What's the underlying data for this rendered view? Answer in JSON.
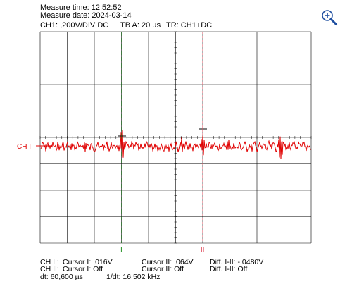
{
  "header": {
    "measure_time": "Measure time: 12:52:52",
    "measure_date": "Measure date: 2024-03-14",
    "channel": "CH1: ,200V/DIV DC",
    "timebase": "TB A: 20 µs",
    "trigger": "TR: CH1+DC"
  },
  "toolbar": {
    "zoom_icon": "zoom-in-icon"
  },
  "plot": {
    "channel_label": "CH I",
    "cursor1_label": "I",
    "cursor2_label": "II",
    "colors": {
      "trace": "#e00000",
      "cursor1": "#1a8a1a",
      "cursor2": "#e05060",
      "grid": "#000000",
      "channel_marker": "#e00000"
    }
  },
  "footer": {
    "ch1_label": "CH I :",
    "ch1_cursor1": "Cursor I: ,016V",
    "ch1_cursor2": "Cursor II: ,064V",
    "ch1_diff": "Diff. I-II: -,0480V",
    "ch2_label": "CH II:",
    "ch2_cursor1": "Cursor I: Off",
    "ch2_cursor2": "Cursor II: Off",
    "ch2_diff": "Diff. I-II: Off",
    "dt": "dt: 60,600 µs",
    "freq": "1/dt: 16,502 kHz"
  }
}
